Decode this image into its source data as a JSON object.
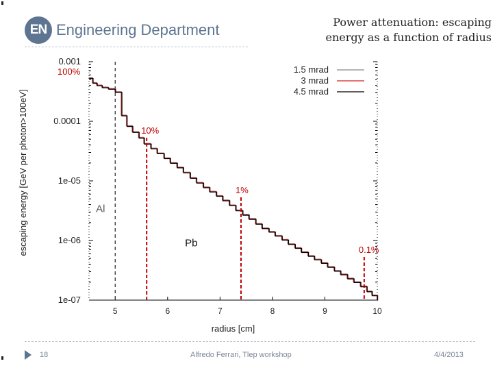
{
  "header": {
    "logo_badge": "EN",
    "logo_text": "Engineering Department"
  },
  "title": {
    "line1": "Power attenuation: escaping",
    "line2": "energy as a function of radius"
  },
  "footer": {
    "page": "18",
    "author": "Alfredo Ferrari, Tlep workshop",
    "date": "4/4/2013"
  },
  "colors": {
    "brand": "#5d7591",
    "annotation": "#c00000",
    "series_black": "#000000",
    "series_red": "#d42020"
  },
  "chart_data": {
    "type": "line",
    "xlabel": "radius [cm]",
    "ylabel": "escaping energy [GeV per photon>100eV]",
    "xlim": [
      4.5,
      10
    ],
    "ylim": [
      1e-07,
      0.001
    ],
    "yscale": "log",
    "xticks": [
      5,
      6,
      7,
      8,
      9,
      10
    ],
    "xtick_labels": [
      "5",
      "6",
      "7",
      "8",
      "9",
      "10"
    ],
    "yticks": [
      0.001,
      0.0001,
      1e-05,
      1e-06,
      1e-07
    ],
    "ytick_labels": [
      "0.001",
      "0.0001",
      "1e-05",
      "1e-06",
      "1e-07"
    ],
    "legend": {
      "position": "top-right",
      "entries": [
        "1.5 mrad",
        "3 mrad",
        "4.5 mrad"
      ]
    },
    "series": [
      {
        "name": "1.5 mrad",
        "color": "#888888",
        "x": [
          4.5,
          4.57,
          4.65,
          4.75,
          4.87,
          5.0,
          5.12,
          5.22,
          5.33,
          5.45,
          5.55,
          5.68,
          5.8,
          5.93,
          6.05,
          6.18,
          6.3,
          6.43,
          6.55,
          6.68,
          6.8,
          6.93,
          7.05,
          7.18,
          7.3,
          7.43,
          7.55,
          7.68,
          7.8,
          7.93,
          8.05,
          8.18,
          8.3,
          8.43,
          8.55,
          8.68,
          8.8,
          8.93,
          9.05,
          9.18,
          9.3,
          9.43,
          9.55,
          9.68,
          9.8,
          9.9,
          10.0
        ],
        "y": [
          0.00053,
          0.00044,
          0.0004,
          0.00037,
          0.00035,
          0.00031,
          0.000125,
          8.3e-05,
          6.6e-05,
          5.3e-05,
          4.2e-05,
          3.5e-05,
          2.9e-05,
          2.4e-05,
          2e-05,
          1.68e-05,
          1.38e-05,
          1.12e-05,
          9.3e-06,
          7.8e-06,
          6.6e-06,
          5.6e-06,
          4.7e-06,
          3.9e-06,
          3.2e-06,
          2.7e-06,
          2.3e-06,
          1.9e-06,
          1.6e-06,
          1.4e-06,
          1.2e-06,
          1.03e-06,
          8.7e-07,
          7.5e-07,
          6.4e-07,
          5.5e-07,
          4.8e-07,
          4.2e-07,
          3.6e-07,
          3.1e-07,
          2.7e-07,
          2.3e-07,
          2e-07,
          1.7e-07,
          1.4e-07,
          1.2e-07,
          1e-07
        ]
      },
      {
        "name": "3 mrad",
        "color": "#d42020",
        "x": [
          4.5,
          4.57,
          4.65,
          4.75,
          4.87,
          5.0,
          5.12,
          5.22,
          5.33,
          5.45,
          5.55,
          5.68,
          5.8,
          5.93,
          6.05,
          6.18,
          6.3,
          6.43,
          6.55,
          6.68,
          6.8,
          6.93,
          7.05,
          7.18,
          7.3,
          7.43,
          7.55,
          7.68,
          7.8,
          7.93,
          8.05,
          8.18,
          8.3,
          8.43,
          8.55,
          8.68,
          8.8,
          8.93,
          9.05,
          9.18,
          9.3,
          9.43,
          9.55,
          9.68,
          9.8,
          9.9,
          10.0
        ],
        "y": [
          0.00053,
          0.00044,
          0.0004,
          0.00037,
          0.00035,
          0.00031,
          0.000125,
          8.3e-05,
          6.6e-05,
          5.3e-05,
          4.2e-05,
          3.5e-05,
          2.9e-05,
          2.4e-05,
          2e-05,
          1.68e-05,
          1.38e-05,
          1.12e-05,
          9.3e-06,
          7.8e-06,
          6.6e-06,
          5.6e-06,
          4.7e-06,
          3.9e-06,
          3.2e-06,
          2.7e-06,
          2.3e-06,
          1.9e-06,
          1.6e-06,
          1.4e-06,
          1.2e-06,
          1.03e-06,
          8.7e-07,
          7.5e-07,
          6.4e-07,
          5.5e-07,
          4.8e-07,
          4.2e-07,
          3.6e-07,
          3.1e-07,
          2.7e-07,
          2.3e-07,
          2e-07,
          1.7e-07,
          1.4e-07,
          1.2e-07,
          1e-07
        ]
      },
      {
        "name": "4.5 mrad",
        "color": "#000000",
        "x": [
          4.5,
          4.57,
          4.65,
          4.75,
          4.87,
          5.0,
          5.12,
          5.22,
          5.33,
          5.45,
          5.55,
          5.68,
          5.8,
          5.93,
          6.05,
          6.18,
          6.3,
          6.43,
          6.55,
          6.68,
          6.8,
          6.93,
          7.05,
          7.18,
          7.3,
          7.43,
          7.55,
          7.68,
          7.8,
          7.93,
          8.05,
          8.18,
          8.3,
          8.43,
          8.55,
          8.68,
          8.8,
          8.93,
          9.05,
          9.18,
          9.3,
          9.43,
          9.55,
          9.68,
          9.8,
          9.9,
          10.0
        ],
        "y": [
          0.00053,
          0.00044,
          0.0004,
          0.00037,
          0.00035,
          0.00031,
          0.000125,
          8.3e-05,
          6.6e-05,
          5.3e-05,
          4.2e-05,
          3.5e-05,
          2.9e-05,
          2.4e-05,
          2e-05,
          1.68e-05,
          1.38e-05,
          1.12e-05,
          9.3e-06,
          7.8e-06,
          6.6e-06,
          5.6e-06,
          4.7e-06,
          3.9e-06,
          3.2e-06,
          2.7e-06,
          2.3e-06,
          1.9e-06,
          1.6e-06,
          1.4e-06,
          1.2e-06,
          1.03e-06,
          8.7e-07,
          7.5e-07,
          6.4e-07,
          5.5e-07,
          4.8e-07,
          4.2e-07,
          3.6e-07,
          3.1e-07,
          2.7e-07,
          2.3e-07,
          2e-07,
          1.7e-07,
          1.4e-07,
          1.2e-07,
          1e-07
        ]
      }
    ],
    "markers": [
      {
        "label": "100%",
        "x": 4.5,
        "y": 0.00053,
        "vline": false
      },
      {
        "label": "10%",
        "x": 5.6,
        "y": 5.3e-05,
        "vline": true
      },
      {
        "label": "1%",
        "x": 7.4,
        "y": 5.3e-06,
        "vline": true
      },
      {
        "label": "0.1%",
        "x": 9.75,
        "y": 5.3e-07,
        "vline": true
      }
    ],
    "boundary": {
      "x": 5.0,
      "style": "dashed"
    },
    "regions": [
      {
        "label": "Al",
        "x": 4.72,
        "y": 3e-06
      },
      {
        "label": "Pb",
        "x": 6.45,
        "y": 8e-07
      }
    ]
  }
}
